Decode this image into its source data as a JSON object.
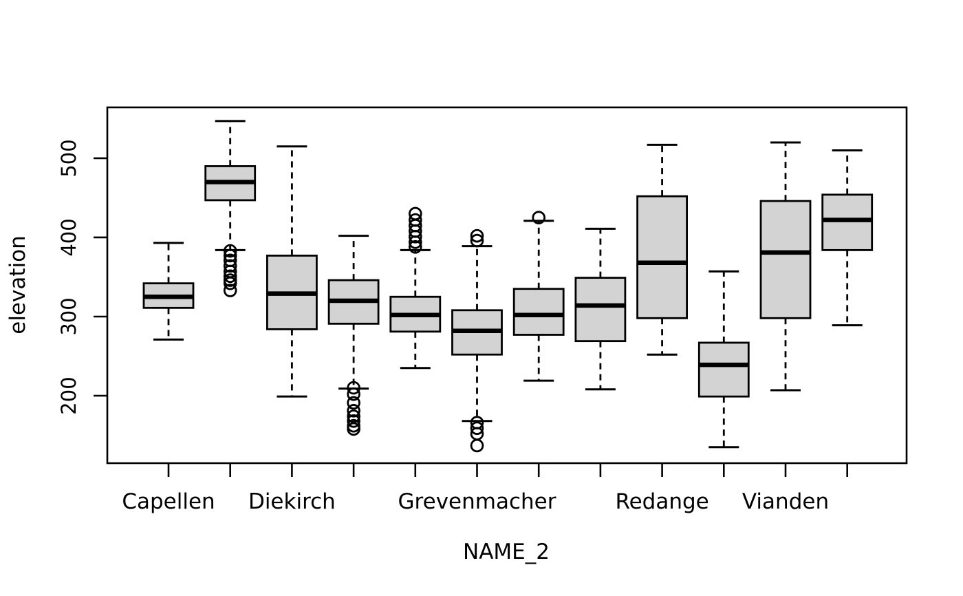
{
  "figure": {
    "background": "#ffffff",
    "x_axis_title": "NAME_2",
    "y_axis_title": "elevation"
  },
  "chart_data": {
    "type": "boxplot",
    "title": "",
    "xlabel": "NAME_2",
    "ylabel": "elevation",
    "ylim": [
      114.8,
      564.3
    ],
    "y_ticks": [
      200,
      300,
      400,
      500
    ],
    "grid": false,
    "legend": false,
    "box_fill_color": "#d3d3d3",
    "line_color": "#000000",
    "n_boxes": 12,
    "categories": [
      "Capellen",
      "",
      "Diekirch",
      "",
      "",
      "Grevenmacher",
      "",
      "",
      "Redange",
      "",
      "Vianden",
      ""
    ],
    "visible_x_tick_labels": [
      "Capellen",
      "Diekirch",
      "Grevenmacher",
      "Redange",
      "Vianden"
    ],
    "boxes": [
      {
        "label": "Capellen",
        "whisker_low": 271,
        "q1": 311,
        "median": 325,
        "q3": 342,
        "whisker_high": 393,
        "outliers_low": [],
        "outliers_high": []
      },
      {
        "label": "",
        "whisker_low": 384,
        "q1": 447,
        "median": 470,
        "q3": 490,
        "whisker_high": 547,
        "outliers_low": [
          383,
          377,
          371,
          364,
          357,
          351,
          346,
          342,
          333
        ],
        "outliers_high": []
      },
      {
        "label": "Diekirch",
        "whisker_low": 199,
        "q1": 284,
        "median": 329,
        "q3": 377,
        "whisker_high": 515,
        "outliers_low": [],
        "outliers_high": []
      },
      {
        "label": "",
        "whisker_low": 209,
        "q1": 291,
        "median": 320,
        "q3": 346,
        "whisker_high": 402,
        "outliers_low": [
          210,
          202,
          191,
          181,
          174,
          168,
          162,
          158
        ],
        "outliers_high": []
      },
      {
        "label": "",
        "whisker_low": 235,
        "q1": 281,
        "median": 302,
        "q3": 325,
        "whisker_high": 384,
        "outliers_low": [],
        "outliers_high": [
          430,
          422,
          415,
          408,
          401,
          394,
          388
        ]
      },
      {
        "label": "Grevenmacher",
        "whisker_low": 168,
        "q1": 252,
        "median": 282,
        "q3": 308,
        "whisker_high": 389,
        "outliers_low": [
          166,
          159,
          152,
          137
        ],
        "outliers_high": [
          402,
          396
        ]
      },
      {
        "label": "",
        "whisker_low": 219,
        "q1": 277,
        "median": 302,
        "q3": 335,
        "whisker_high": 421,
        "outliers_low": [],
        "outliers_high": [
          425
        ]
      },
      {
        "label": "",
        "whisker_low": 208,
        "q1": 269,
        "median": 314,
        "q3": 349,
        "whisker_high": 411,
        "outliers_low": [],
        "outliers_high": []
      },
      {
        "label": "Redange",
        "whisker_low": 252,
        "q1": 298,
        "median": 368,
        "q3": 452,
        "whisker_high": 517,
        "outliers_low": [],
        "outliers_high": []
      },
      {
        "label": "",
        "whisker_low": 135,
        "q1": 199,
        "median": 239,
        "q3": 267,
        "whisker_high": 357,
        "outliers_low": [],
        "outliers_high": []
      },
      {
        "label": "Vianden",
        "whisker_low": 207,
        "q1": 298,
        "median": 381,
        "q3": 446,
        "whisker_high": 520,
        "outliers_low": [],
        "outliers_high": []
      },
      {
        "label": "",
        "whisker_low": 289,
        "q1": 384,
        "median": 422,
        "q3": 454,
        "whisker_high": 510,
        "outliers_low": [],
        "outliers_high": []
      }
    ]
  }
}
